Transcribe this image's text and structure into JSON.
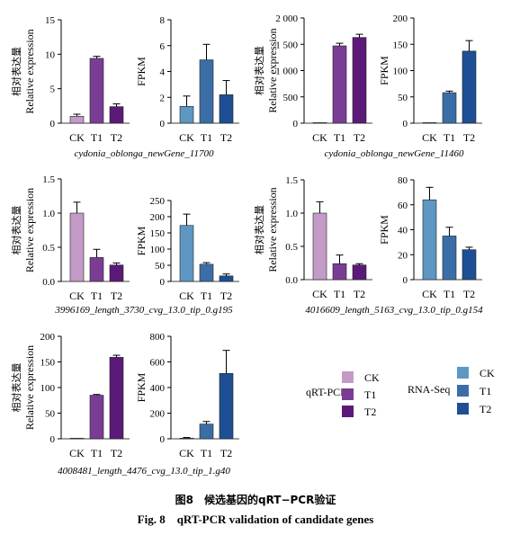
{
  "axis_labels": {
    "qrt_y_cn": "相对表达量",
    "qrt_y_en": "Relative expression",
    "rna_y": "FPKM"
  },
  "colors": {
    "qrt": [
      "#c39bc6",
      "#7a3d96",
      "#5c1a78"
    ],
    "rna": [
      "#5d97c2",
      "#3b6ea6",
      "#1e4f94"
    ]
  },
  "legend": {
    "qrt_title": "qRT-PCR",
    "rna_title": "RNA-Seq",
    "items": [
      "CK",
      "T1",
      "T2"
    ]
  },
  "caption": {
    "cn": "图8　候选基因的qRT−PCR验证",
    "en": "Fig. 8　qRT-PCR validation of candidate genes"
  },
  "chart_data": [
    {
      "type": "bar",
      "gene": "cydonia_oblonga_newGene_11700",
      "assay": "qRT-PCR",
      "ylabel": "Relative expression",
      "ylabel_cn": "相对表达量",
      "categories": [
        "CK",
        "T1",
        "T2"
      ],
      "values": [
        1.0,
        9.4,
        2.4
      ],
      "errors": [
        0.3,
        0.3,
        0.4
      ],
      "ylim": [
        0,
        15
      ],
      "ticks": [
        "0",
        "5",
        "10",
        "15"
      ],
      "tickvals": [
        0,
        5,
        10,
        15
      ]
    },
    {
      "type": "bar",
      "gene": "cydonia_oblonga_newGene_11700",
      "assay": "RNA-Seq",
      "ylabel": "FPKM",
      "categories": [
        "CK",
        "T1",
        "T2"
      ],
      "values": [
        1.3,
        4.9,
        2.2
      ],
      "errors": [
        0.8,
        1.2,
        1.1
      ],
      "ylim": [
        0,
        8
      ],
      "ticks": [
        "0",
        "2",
        "4",
        "6",
        "8"
      ],
      "tickvals": [
        0,
        2,
        4,
        6,
        8
      ]
    },
    {
      "type": "bar",
      "gene": "cydonia_oblonga_newGene_11460",
      "assay": "qRT-PCR",
      "ylabel": "Relative expression",
      "ylabel_cn": "相对表达量",
      "categories": [
        "CK",
        "T1",
        "T2"
      ],
      "values": [
        1,
        1470,
        1630
      ],
      "errors": [
        0,
        50,
        60
      ],
      "ylim": [
        0,
        2000
      ],
      "ticks": [
        "0",
        "500",
        "1 000",
        "1 500",
        "2 000"
      ],
      "tickvals": [
        0,
        500,
        1000,
        1500,
        2000
      ]
    },
    {
      "type": "bar",
      "gene": "cydonia_oblonga_newGene_11460",
      "assay": "RNA-Seq",
      "ylabel": "FPKM",
      "categories": [
        "CK",
        "T1",
        "T2"
      ],
      "values": [
        0.5,
        58,
        137
      ],
      "errors": [
        0,
        3,
        20
      ],
      "ylim": [
        0,
        200
      ],
      "ticks": [
        "0",
        "50",
        "100",
        "150",
        "200"
      ],
      "tickvals": [
        0,
        50,
        100,
        150,
        200
      ]
    },
    {
      "type": "bar",
      "gene": "3996169_length_3730_cvg_13.0_tip_0.g195",
      "assay": "qRT-PCR",
      "ylabel": "Relative expression",
      "ylabel_cn": "相对表达量",
      "categories": [
        "CK",
        "T1",
        "T2"
      ],
      "values": [
        1.0,
        0.35,
        0.24
      ],
      "errors": [
        0.16,
        0.12,
        0.03
      ],
      "ylim": [
        0,
        1.5
      ],
      "ticks": [
        "0.0",
        "0.5",
        "1.0",
        "1.5"
      ],
      "tickvals": [
        0,
        0.5,
        1.0,
        1.5
      ]
    },
    {
      "type": "bar",
      "gene": "3996169_length_3730_cvg_13.0_tip_0.g195",
      "assay": "RNA-Seq",
      "ylabel": "FPKM",
      "categories": [
        "CK",
        "T1",
        "T2"
      ],
      "values": [
        173,
        53,
        17
      ],
      "errors": [
        35,
        5,
        6
      ],
      "ylim": [
        0,
        250
      ],
      "ticks": [
        "0",
        "50",
        "100",
        "150",
        "200",
        "250"
      ],
      "tickvals": [
        0,
        50,
        100,
        150,
        200,
        250
      ]
    },
    {
      "type": "bar",
      "gene": "4016609_length_5163_cvg_13.0_tip_0.g154",
      "assay": "qRT-PCR",
      "ylabel": "Relative expression",
      "ylabel_cn": "相对表达量",
      "categories": [
        "CK",
        "T1",
        "T2"
      ],
      "values": [
        1.0,
        0.24,
        0.22
      ],
      "errors": [
        0.17,
        0.13,
        0.02
      ],
      "ylim": [
        0,
        1.5
      ],
      "ticks": [
        "0.0",
        "0.5",
        "1.0",
        "1.5"
      ],
      "tickvals": [
        0,
        0.5,
        1.0,
        1.5
      ]
    },
    {
      "type": "bar",
      "gene": "4016609_length_5163_cvg_13.0_tip_0.g154",
      "assay": "RNA-Seq",
      "ylabel": "FPKM",
      "categories": [
        "CK",
        "T1",
        "T2"
      ],
      "values": [
        64,
        35,
        24
      ],
      "errors": [
        10,
        7,
        2
      ],
      "ylim": [
        0,
        80
      ],
      "ticks": [
        "0",
        "20",
        "40",
        "60",
        "80"
      ],
      "tickvals": [
        0,
        20,
        40,
        60,
        80
      ]
    },
    {
      "type": "bar",
      "gene": "4008481_length_4476_cvg_13.0_tip_1.g40",
      "assay": "qRT-PCR",
      "ylabel": "Relative expression",
      "ylabel_cn": "相对表达量",
      "categories": [
        "CK",
        "T1",
        "T2"
      ],
      "values": [
        1,
        85,
        159
      ],
      "errors": [
        0,
        1.5,
        4
      ],
      "ylim": [
        0,
        200
      ],
      "ticks": [
        "0",
        "50",
        "100",
        "150",
        "200"
      ],
      "tickvals": [
        0,
        50,
        100,
        150,
        200
      ]
    },
    {
      "type": "bar",
      "gene": "4008481_length_4476_cvg_13.0_tip_1.g40",
      "assay": "RNA-Seq",
      "ylabel": "FPKM",
      "categories": [
        "CK",
        "T1",
        "T2"
      ],
      "values": [
        5,
        115,
        510
      ],
      "errors": [
        5,
        20,
        180
      ],
      "ylim": [
        0,
        800
      ],
      "ticks": [
        "0",
        "200",
        "400",
        "600",
        "800"
      ],
      "tickvals": [
        0,
        200,
        400,
        600,
        800
      ]
    }
  ]
}
